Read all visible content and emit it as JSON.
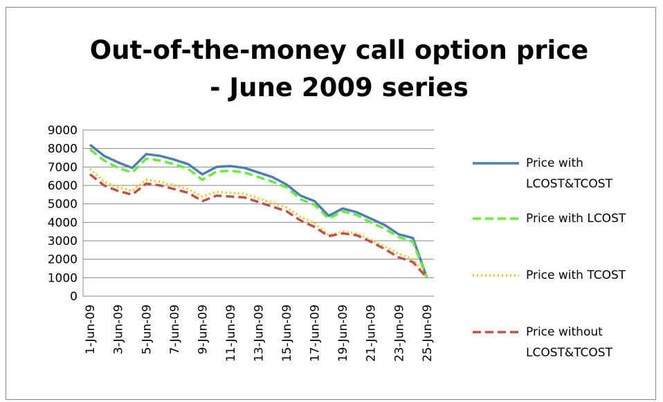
{
  "chart_data": {
    "type": "line",
    "title": "Out-of-the-money call option price - June 2009 series",
    "categories": [
      "1-Jun-09",
      null,
      "3-Jun-09",
      null,
      "5-Jun-09",
      null,
      "7-Jun-09",
      null,
      "9-Jun-09",
      null,
      "11-Jun-09",
      null,
      "13-Jun-09",
      null,
      "15-Jun-09",
      null,
      "17-Jun-09",
      null,
      "19-Jun-09",
      null,
      "21-Jun-09",
      null,
      "23-Jun-09",
      null,
      "25-Jun-09"
    ],
    "series": [
      {
        "name": "Price with LCOST&TCOST",
        "color": "#4a7ebb",
        "style": "solid",
        "values": [
          8200,
          7600,
          7250,
          6950,
          7700,
          7600,
          7400,
          7150,
          6600,
          7000,
          7050,
          6950,
          6700,
          6450,
          6050,
          5450,
          5150,
          4350,
          4750,
          4550,
          4200,
          3850,
          3350,
          3150,
          1000
        ]
      },
      {
        "name": "Price with LCOST",
        "color": "#66ee33",
        "style": "dashed",
        "values": [
          7950,
          7350,
          6950,
          6700,
          7450,
          7350,
          7150,
          6900,
          6300,
          6750,
          6800,
          6700,
          6450,
          6200,
          5900,
          5250,
          4950,
          4200,
          4600,
          4400,
          4000,
          3650,
          3200,
          2950,
          1000
        ]
      },
      {
        "name": "Price with TCOST",
        "color": "#ffc000",
        "style": "dotted",
        "values": [
          6900,
          6200,
          5900,
          5700,
          6300,
          6200,
          6000,
          5800,
          5400,
          5650,
          5600,
          5550,
          5300,
          5050,
          4800,
          4300,
          3950,
          3300,
          3500,
          3400,
          3050,
          2700,
          2300,
          2000,
          1000
        ]
      },
      {
        "name": "Price without LCOST&TCOST",
        "color": "#c0504d",
        "style": "dashed",
        "values": [
          6600,
          6000,
          5700,
          5500,
          6100,
          6000,
          5800,
          5600,
          5150,
          5450,
          5400,
          5350,
          5100,
          4850,
          4600,
          4100,
          3750,
          3250,
          3400,
          3300,
          2950,
          2550,
          2100,
          1850,
          1000
        ]
      }
    ],
    "ylim": [
      0,
      9000
    ],
    "yticks": [
      0,
      1000,
      2000,
      3000,
      4000,
      5000,
      6000,
      7000,
      8000,
      9000
    ],
    "grid": true,
    "legend": "right"
  }
}
